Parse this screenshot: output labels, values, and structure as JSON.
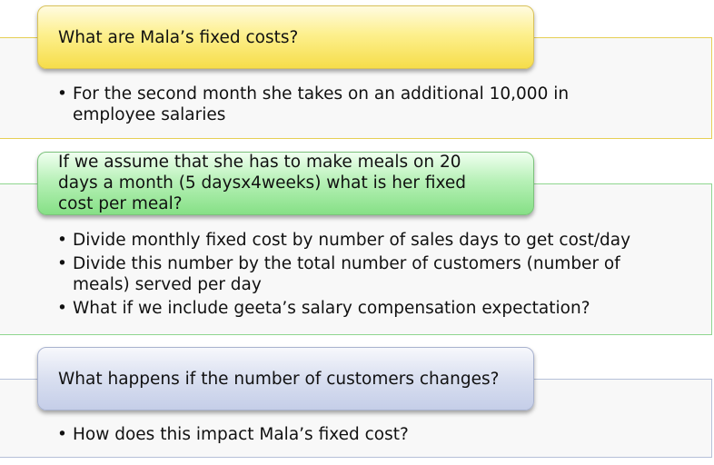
{
  "sections": [
    {
      "header": "What are Mala’s fixed costs?",
      "bullets": [
        "For the second month she takes on an additional 10,000 in employee salaries"
      ]
    },
    {
      "header": "If we assume that she has to make meals on 20 days  a month (5 daysx4weeks) what is her fixed cost per meal?",
      "bullets": [
        "Divide monthly fixed cost by number of sales days to get cost/day",
        "Divide this number by the total number of customers (number of meals) served per day",
        "What if we include geeta’s salary compensation expectation?"
      ]
    },
    {
      "header": "What happens if the number of customers changes?",
      "bullets": [
        "How does this impact Mala’s fixed cost?"
      ]
    }
  ],
  "colors": {
    "section1_accent": "#f6dd4a",
    "section2_accent": "#86e086",
    "section3_accent": "#c5cee8"
  }
}
